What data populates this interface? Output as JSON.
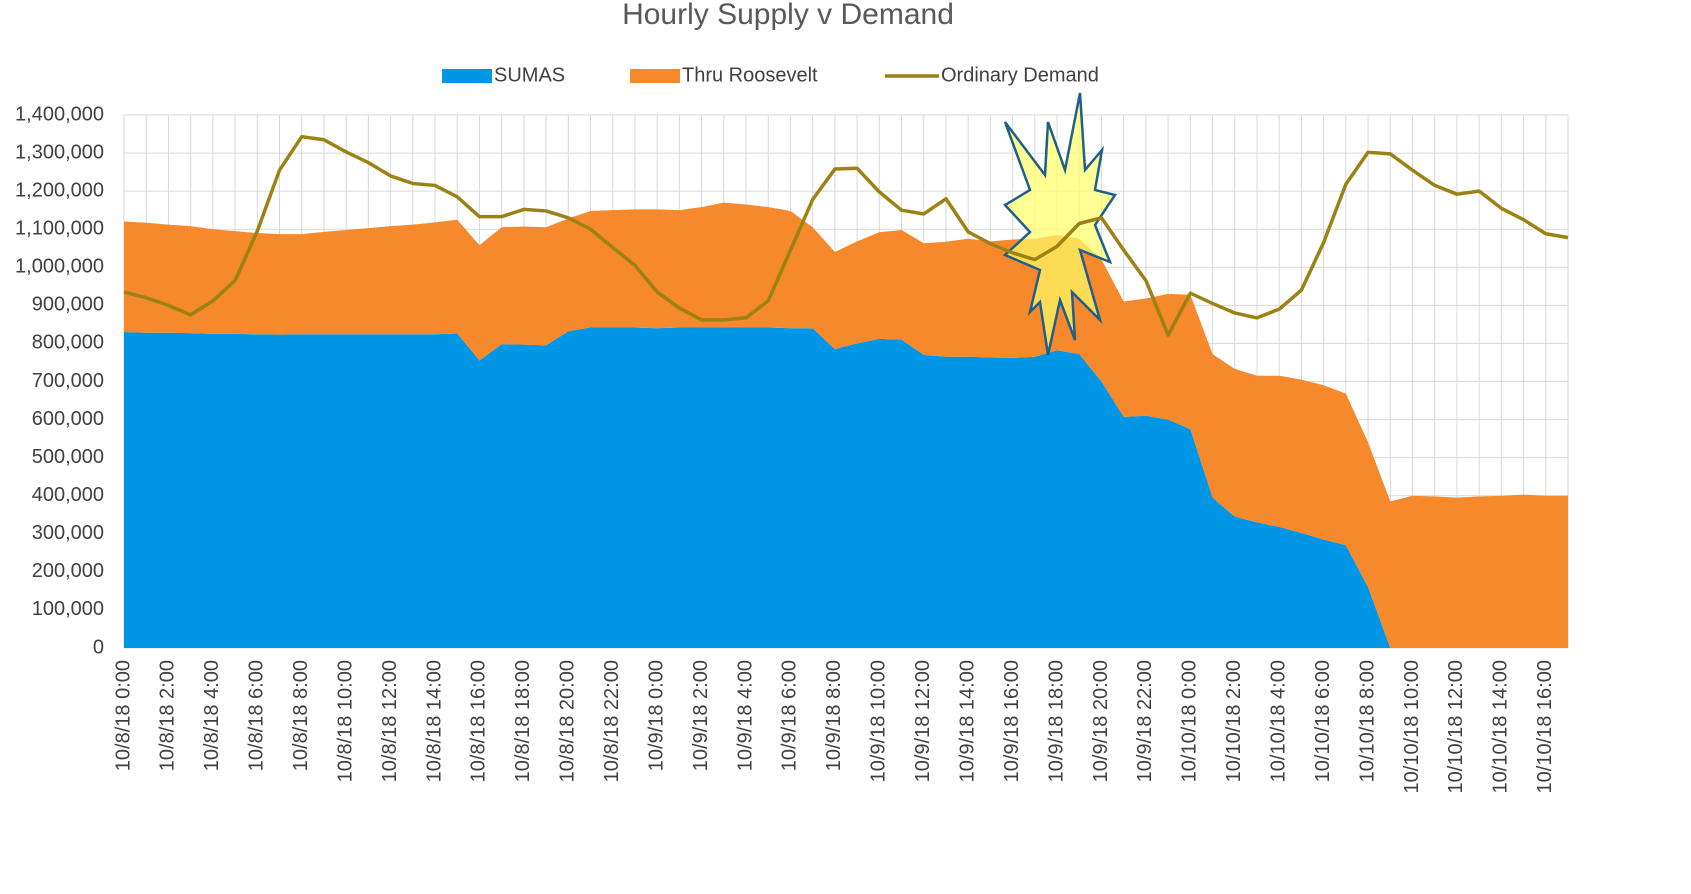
{
  "chart_data": {
    "type": "stacked-area-line",
    "title": "Hourly Supply v Demand",
    "categories": [
      "10/8/18 0:00",
      null,
      "10/8/18 2:00",
      null,
      "10/8/18 4:00",
      null,
      "10/8/18 6:00",
      null,
      "10/8/18 8:00",
      null,
      "10/8/18 10:00",
      null,
      "10/8/18 12:00",
      null,
      "10/8/18 14:00",
      null,
      "10/8/18 16:00",
      null,
      "10/8/18 18:00",
      null,
      "10/8/18 20:00",
      null,
      "10/8/18 22:00",
      null,
      "10/9/18 0:00",
      null,
      "10/9/18 2:00",
      null,
      "10/9/18 4:00",
      null,
      "10/9/18 6:00",
      null,
      "10/9/18 8:00",
      null,
      "10/9/18 10:00",
      null,
      "10/9/18 12:00",
      null,
      "10/9/18 14:00",
      null,
      "10/9/18 16:00",
      null,
      "10/9/18 18:00",
      null,
      "10/9/18 20:00",
      null,
      "10/9/18 22:00",
      null,
      "10/10/18 0:00",
      null,
      "10/10/18 2:00",
      null,
      "10/10/18 4:00",
      null,
      "10/10/18 6:00",
      null,
      "10/10/18 8:00",
      null,
      "10/10/18 10:00",
      null,
      "10/10/18 12:00",
      null,
      "10/10/18 14:00",
      null,
      "10/10/18 16:00",
      null
    ],
    "series": [
      {
        "name": "SUMAS",
        "color": "#0096e6",
        "kind": "area",
        "values": [
          830000,
          828000,
          828000,
          827000,
          825000,
          825000,
          824000,
          823000,
          824000,
          824000,
          824000,
          824000,
          824000,
          824000,
          824000,
          826000,
          755000,
          798000,
          797000,
          795000,
          832000,
          842000,
          842000,
          842000,
          840000,
          842000,
          842000,
          842000,
          842000,
          842000,
          840000,
          840000,
          785000,
          800000,
          812000,
          810000,
          770000,
          765000,
          765000,
          763000,
          762000,
          765000,
          782000,
          772000,
          700000,
          607000,
          610000,
          600000,
          575000,
          395000,
          345000,
          330000,
          318000,
          302000,
          285000,
          270000,
          160000,
          0,
          0,
          0,
          0,
          0,
          0,
          0,
          0,
          0
        ]
      },
      {
        "name": "Thru Roosevelt",
        "color": "#f5892b",
        "kind": "area",
        "values": [
          290000,
          289000,
          284000,
          281000,
          275000,
          270000,
          266000,
          264000,
          263000,
          269000,
          274000,
          279000,
          284000,
          288000,
          294000,
          299000,
          303000,
          307000,
          310000,
          310000,
          296000,
          306000,
          308000,
          310000,
          312000,
          308000,
          316000,
          328000,
          323000,
          316000,
          308000,
          265000,
          255000,
          268000,
          280000,
          288000,
          293000,
          302000,
          310000,
          305000,
          311000,
          310000,
          303000,
          303000,
          320000,
          303000,
          308000,
          330000,
          353000,
          377000,
          388000,
          385000,
          397000,
          403000,
          405000,
          398000,
          380000,
          385000,
          400000,
          398000,
          395000,
          398000,
          400000,
          403000,
          400000,
          400000
        ]
      },
      {
        "name": "Ordinary Demand",
        "color": "#9c8114",
        "kind": "line",
        "values": [
          935000,
          920000,
          900000,
          875000,
          912000,
          965000,
          1095000,
          1255000,
          1343000,
          1335000,
          1303000,
          1275000,
          1240000,
          1220000,
          1215000,
          1185000,
          1133000,
          1133000,
          1152000,
          1148000,
          1130000,
          1100000,
          1052000,
          1005000,
          935000,
          893000,
          862000,
          862000,
          867000,
          912000,
          1045000,
          1178000,
          1258000,
          1260000,
          1198000,
          1150000,
          1140000,
          1180000,
          1093000,
          1062000,
          1038000,
          1020000,
          1055000,
          1115000,
          1130000,
          1045000,
          965000,
          822000,
          932000,
          905000,
          880000,
          867000,
          890000,
          940000,
          1065000,
          1218000,
          1302000,
          1298000,
          1255000,
          1215000,
          1192000,
          1200000,
          1155000,
          1125000,
          1088000,
          1078000
        ]
      }
    ],
    "ylim": [
      0,
      1400000
    ],
    "yticks": [
      0,
      {
        "value": 100000,
        "label": "100,000"
      },
      {
        "value": 200000,
        "label": "200,000"
      },
      {
        "value": 300000,
        "label": "300,000"
      },
      {
        "value": 400000,
        "label": "400,000"
      },
      {
        "value": 500000,
        "label": "500,000"
      },
      {
        "value": 600000,
        "label": "600,000"
      },
      {
        "value": 700000,
        "label": "700,000"
      },
      {
        "value": 800000,
        "label": "800,000"
      },
      {
        "value": 900000,
        "label": "900,000"
      },
      {
        "value": 1000000,
        "label": "1,000,000"
      },
      {
        "value": 1100000,
        "label": "1,100,000"
      },
      {
        "value": 1200000,
        "label": "1,200,000"
      },
      {
        "value": 1300000,
        "label": "1,300,000"
      },
      {
        "value": 1400000,
        "label": "1,400,000"
      }
    ],
    "grid": true,
    "legend": "top"
  }
}
